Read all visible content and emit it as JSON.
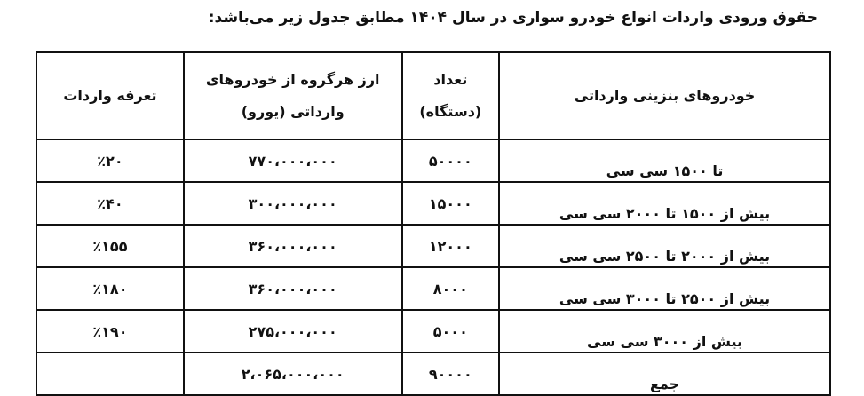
{
  "title": "حقوق ورودی واردات انواع خودرو سواری در سال ۱۴۰۴ مطابق جدول زیر می‌باشد:",
  "table": {
    "headers": [
      "خودروهای بنزینی وارداتی",
      "تعداد (دستگاه)",
      "ارز هرگروه از خودروهای وارداتی (یورو)",
      "تعرفه واردات"
    ],
    "rows": [
      [
        "تا ۱۵۰۰ سی سی",
        "۵۰۰۰۰",
        "۷۷۰،۰۰۰،۰۰۰",
        "٪۲۰"
      ],
      [
        "بیش از ۱۵۰۰ تا ۲۰۰۰ سی سی",
        "۱۵۰۰۰",
        "۳۰۰،۰۰۰،۰۰۰",
        "٪۴۰"
      ],
      [
        "بیش از ۲۰۰۰ تا ۲۵۰۰ سی سی",
        "۱۲۰۰۰",
        "۳۶۰،۰۰۰،۰۰۰",
        "٪۱۵۵"
      ],
      [
        "بیش از ۲۵۰۰ تا ۳۰۰۰ سی سی",
        "۸۰۰۰",
        "۳۶۰،۰۰۰،۰۰۰",
        "٪۱۸۰"
      ],
      [
        "بیش از ۳۰۰۰ سی سی",
        "۵۰۰۰",
        "۲۷۵،۰۰۰،۰۰۰",
        "٪۱۹۰"
      ],
      [
        "جمع",
        "۹۰۰۰۰",
        "۲،۰۶۵،۰۰۰،۰۰۰",
        ""
      ]
    ]
  }
}
